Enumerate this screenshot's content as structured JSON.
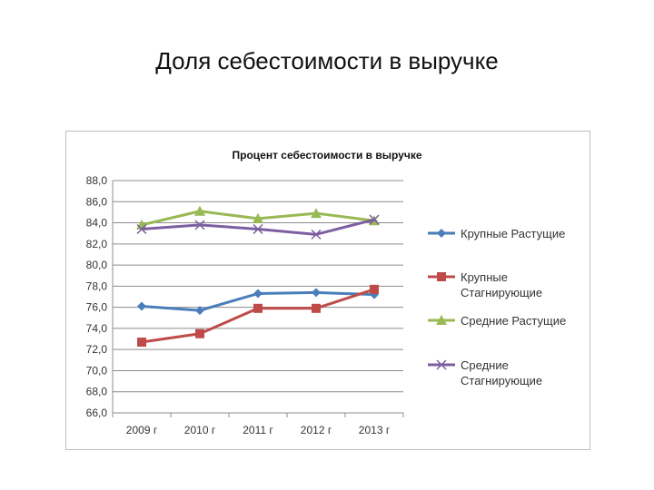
{
  "slide": {
    "title": "Доля себестоимости в выручке"
  },
  "chart_data": {
    "type": "line",
    "title": "Процент себестоимости в выручке",
    "xlabel": "",
    "ylabel": "",
    "categories": [
      "2009 г",
      "2010 г",
      "2011 г",
      "2012 г",
      "2013 г"
    ],
    "ylim": [
      66,
      88
    ],
    "ytick_step": 2,
    "grid": true,
    "legend_position": "right",
    "series": [
      {
        "name": "Крупные Растущие",
        "name_lines": [
          "Крупные Растущие"
        ],
        "color": "#4a7ebb",
        "marker": "diamond",
        "values": [
          76.1,
          75.7,
          77.3,
          77.4,
          77.2
        ]
      },
      {
        "name": "Крупные Стагнирующие",
        "name_lines": [
          "Крупные",
          "Стагнирующие"
        ],
        "color": "#be4b48",
        "marker": "square",
        "values": [
          72.7,
          73.5,
          75.9,
          75.9,
          77.7
        ]
      },
      {
        "name": "Средние Растущие",
        "name_lines": [
          "Средние Растущие"
        ],
        "color": "#98b954",
        "marker": "triangle",
        "values": [
          83.8,
          85.1,
          84.4,
          84.9,
          84.2
        ]
      },
      {
        "name": "Средние Стагнирующие",
        "name_lines": [
          "Средние",
          "Стагнирующие"
        ],
        "color": "#7d5fa0",
        "marker": "x",
        "values": [
          83.4,
          83.8,
          83.4,
          82.9,
          84.3
        ]
      }
    ]
  }
}
